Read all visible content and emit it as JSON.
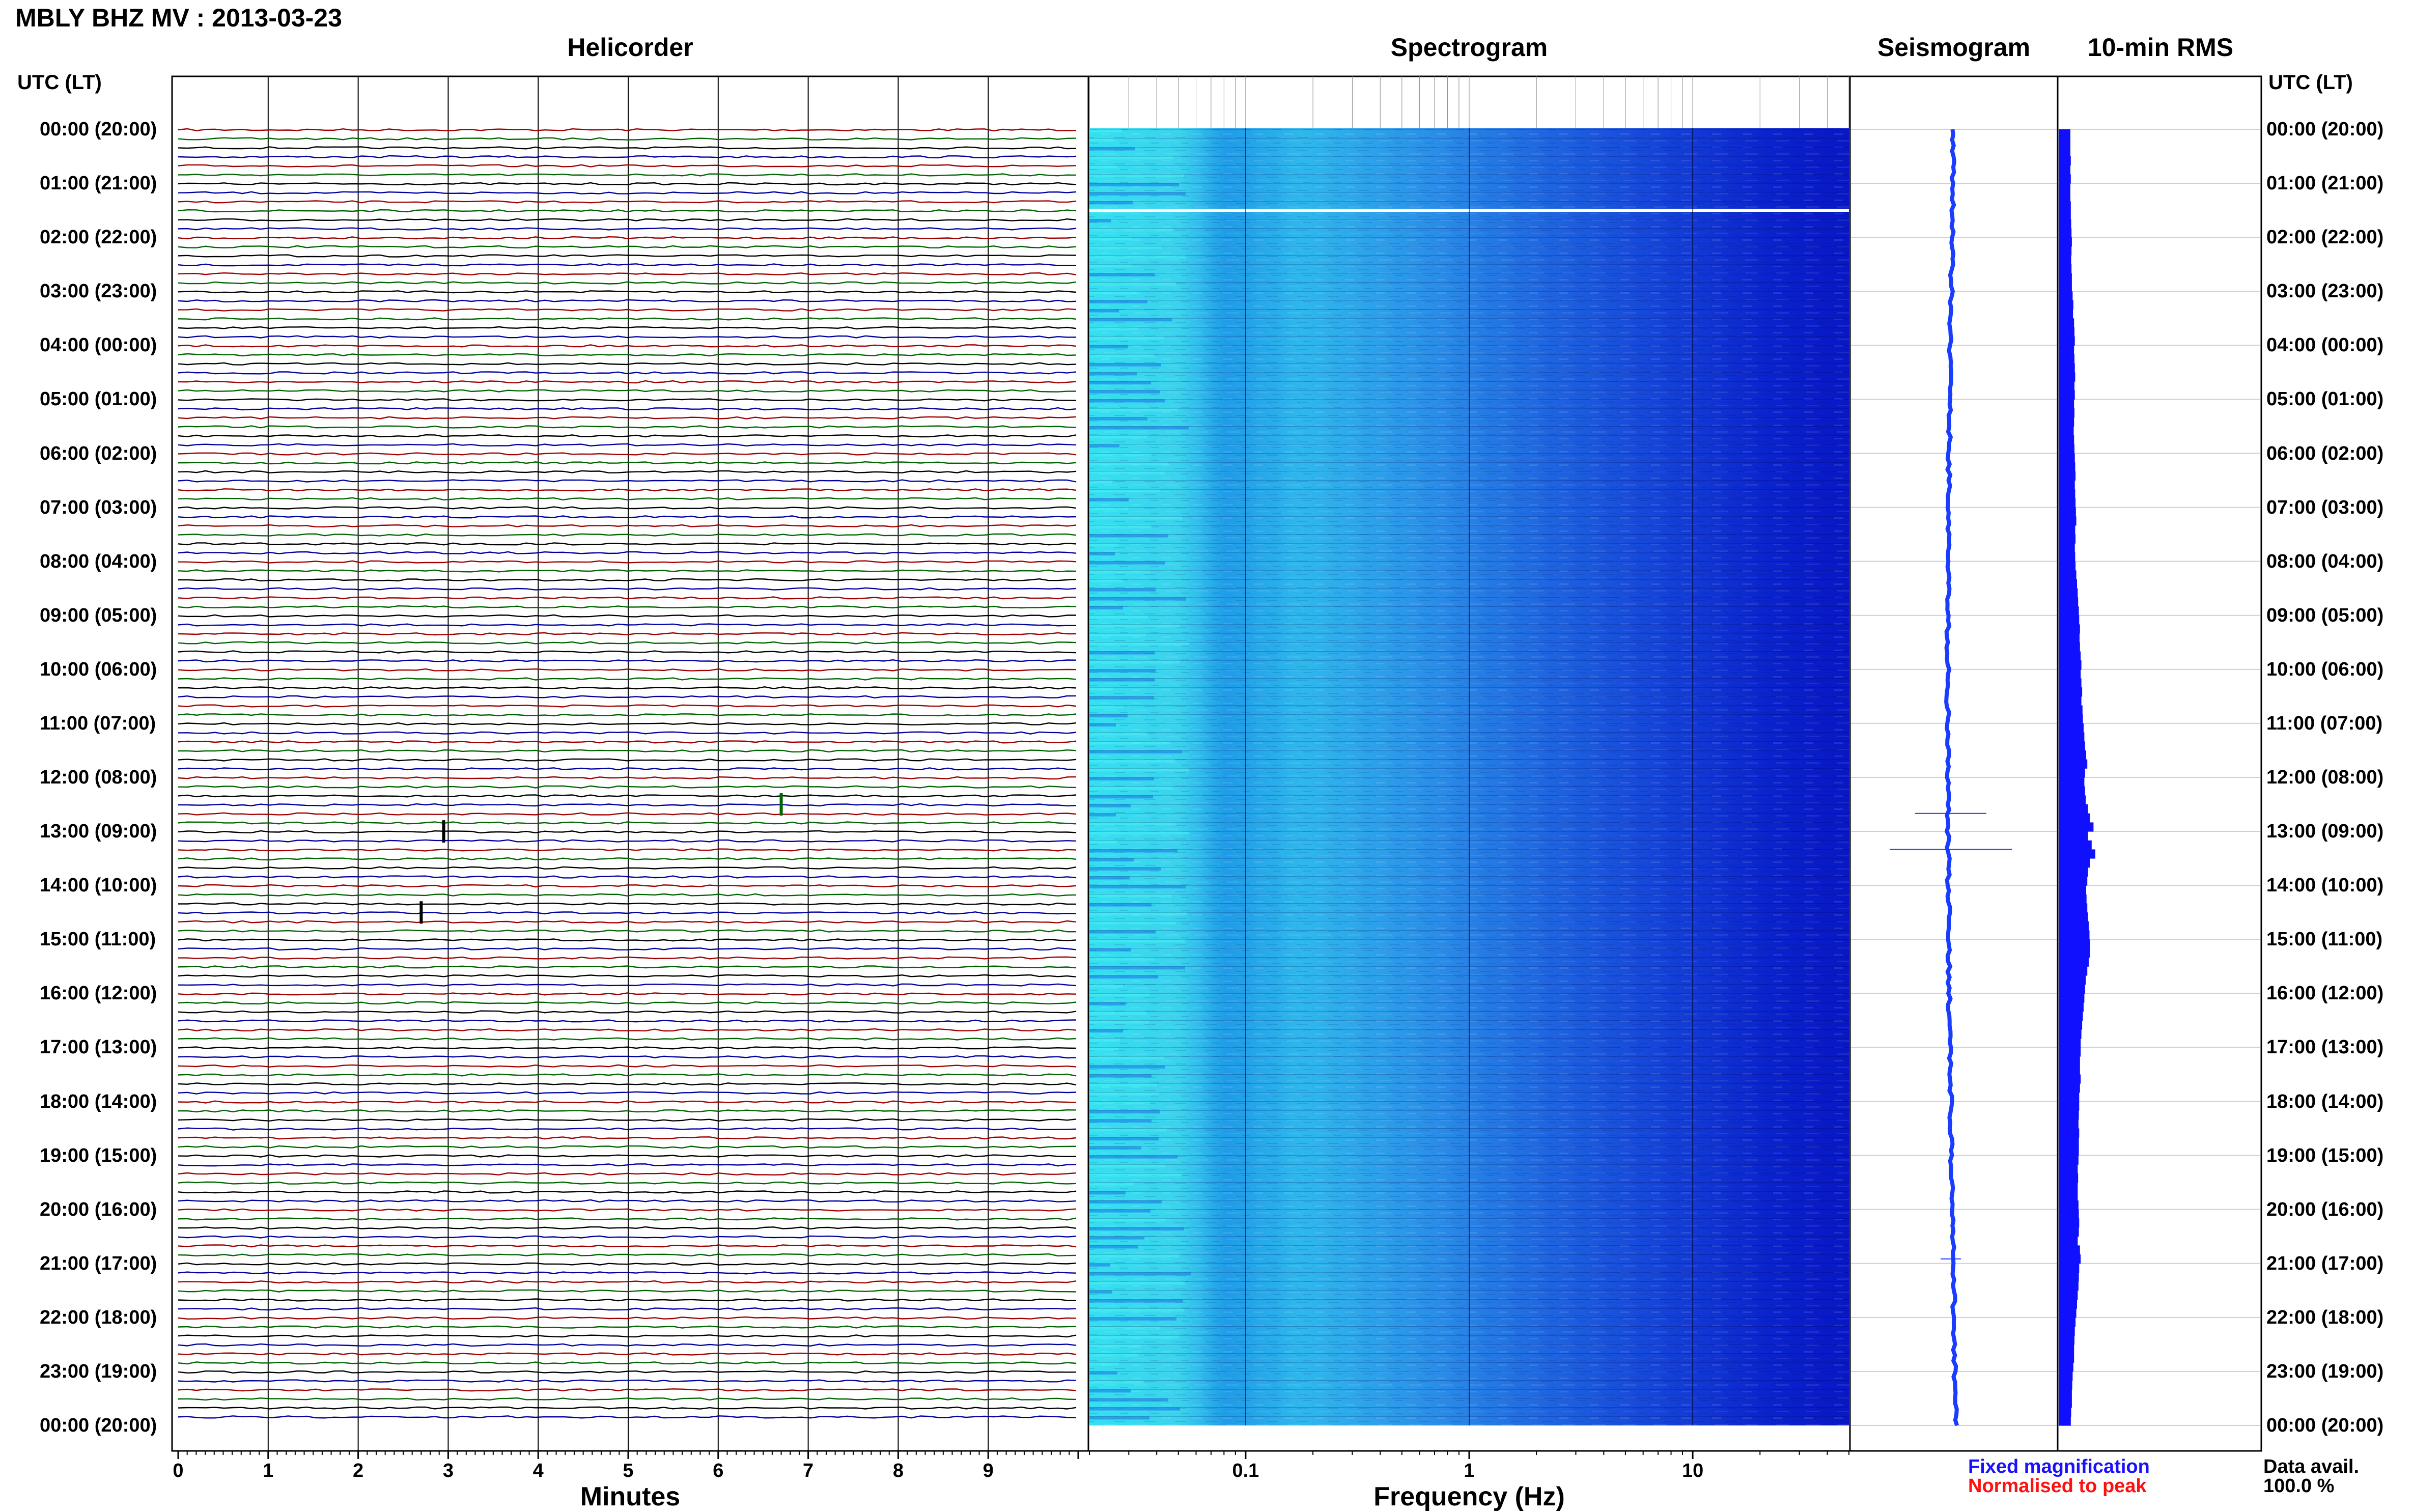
{
  "header": {
    "title": "MBLY BHZ MV : 2013-03-23",
    "utc_lt_left": "UTC (LT)",
    "utc_lt_right": "UTC (LT)"
  },
  "panels": {
    "helicorder": "Helicorder",
    "spectrogram": "Spectrogram",
    "seismogram": "Seismogram",
    "rms": "10-min RMS"
  },
  "time_labels": [
    "00:00 (20:00)",
    "01:00 (21:00)",
    "02:00 (22:00)",
    "03:00 (23:00)",
    "04:00 (00:00)",
    "05:00 (01:00)",
    "06:00 (02:00)",
    "07:00 (03:00)",
    "08:00 (04:00)",
    "09:00 (05:00)",
    "10:00 (06:00)",
    "11:00 (07:00)",
    "12:00 (08:00)",
    "13:00 (09:00)",
    "14:00 (10:00)",
    "15:00 (11:00)",
    "16:00 (12:00)",
    "17:00 (13:00)",
    "18:00 (14:00)",
    "19:00 (15:00)",
    "20:00 (16:00)",
    "21:00 (17:00)",
    "22:00 (18:00)",
    "23:00 (19:00)",
    "00:00 (20:00)"
  ],
  "footer": {
    "minutes_label": "Minutes",
    "frequency_label": "Frequency (Hz)",
    "fixed_magnification": "Fixed magnification",
    "normalised_to_peak": "Normalised to peak",
    "data_avail_label": "Data avail.",
    "data_avail_value": "100.0 %"
  },
  "colors": {
    "trace_cycle": [
      "#a00000",
      "#006400",
      "#000000",
      "#0000a0"
    ],
    "spectrogram_low": "#35e0f0",
    "spectrogram_mid": "#1f7be6",
    "spectrogram_high": "#0a1fd0",
    "seismogram": "#1a3cff",
    "rms": "#1010ff",
    "fixed_magnification": "#1a10ff",
    "normalised_to_peak": "#ff1010"
  },
  "chart_data": [
    {
      "type": "line",
      "title": "Helicorder",
      "xlabel": "Minutes",
      "x_ticks": [
        "0",
        "1",
        "2",
        "3",
        "4",
        "5",
        "6",
        "7",
        "8",
        "9"
      ],
      "xlim": [
        0,
        10
      ],
      "rows": 144,
      "row_duration_minutes": 10,
      "notable_events": [
        {
          "time": "12:30",
          "minute": 6.7,
          "color": "green"
        },
        {
          "time": "13:00",
          "minute": 2.95,
          "color": "black"
        },
        {
          "time": "14:30",
          "minute": 2.7,
          "color": "black"
        }
      ]
    },
    {
      "type": "heatmap",
      "title": "Spectrogram",
      "xlabel": "Frequency (Hz)",
      "x_scale": "log",
      "x_ticks": [
        "0.1",
        "1",
        "10"
      ],
      "xlim": [
        0.02,
        50
      ],
      "data_gap": {
        "time": "01:30"
      }
    },
    {
      "type": "line",
      "title": "Seismogram",
      "notable_events": [
        {
          "time": "12:40",
          "relative_amplitude": 0.35
        },
        {
          "time": "13:20",
          "relative_amplitude": 0.6
        },
        {
          "time": "20:55",
          "relative_amplitude": 0.1
        }
      ]
    },
    {
      "type": "bar",
      "title": "10-min RMS",
      "orientation": "horizontal",
      "values": [
        0.32,
        0.32,
        0.32,
        0.33,
        0.32,
        0.33,
        0.32,
        0.32,
        0.33,
        0.33,
        0.34,
        0.35,
        0.36,
        0.35,
        0.34,
        0.35,
        0.36,
        0.36,
        0.38,
        0.4,
        0.39,
        0.42,
        0.43,
        0.44,
        0.42,
        0.43,
        0.44,
        0.45,
        0.43,
        0.44,
        0.42,
        0.43,
        0.42,
        0.41,
        0.42,
        0.43,
        0.44,
        0.45,
        0.46,
        0.44,
        0.45,
        0.46,
        0.47,
        0.48,
        0.45,
        0.46,
        0.44,
        0.45,
        0.46,
        0.48,
        0.5,
        0.52,
        0.53,
        0.55,
        0.56,
        0.58,
        0.57,
        0.58,
        0.6,
        0.62,
        0.6,
        0.62,
        0.64,
        0.62,
        0.65,
        0.66,
        0.68,
        0.7,
        0.72,
        0.75,
        0.78,
        0.72,
        0.7,
        0.72,
        0.74,
        0.8,
        0.85,
        0.95,
        0.8,
        0.9,
        1.0,
        0.85,
        0.8,
        0.78,
        0.75,
        0.76,
        0.78,
        0.8,
        0.82,
        0.84,
        0.86,
        0.85,
        0.82,
        0.78,
        0.74,
        0.72,
        0.7,
        0.68,
        0.66,
        0.64,
        0.62,
        0.6,
        0.6,
        0.58,
        0.58,
        0.6,
        0.58,
        0.56,
        0.56,
        0.55,
        0.54,
        0.56,
        0.55,
        0.55,
        0.54,
        0.52,
        0.53,
        0.52,
        0.52,
        0.54,
        0.55,
        0.56,
        0.55,
        0.52,
        0.58,
        0.6,
        0.56,
        0.55,
        0.54,
        0.52,
        0.5,
        0.48,
        0.46,
        0.44,
        0.43,
        0.42,
        0.42,
        0.4,
        0.38,
        0.37,
        0.36,
        0.36,
        0.34,
        0.33
      ]
    }
  ]
}
